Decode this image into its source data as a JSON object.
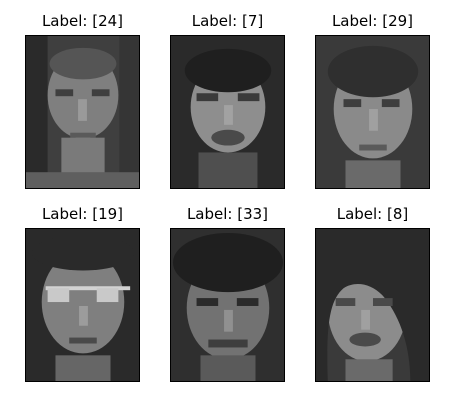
{
  "figure": {
    "panels": [
      {
        "title": "Label: [24]",
        "content": "grayscale face photo",
        "tone": "#7d7d7d",
        "hair": "#2c2c2c",
        "bg": "#3b3b3b"
      },
      {
        "title": "Label: [7]",
        "content": "grayscale face photo",
        "tone": "#8f8f8f",
        "hair": "#1f1f1f",
        "bg": "#2a2a2a"
      },
      {
        "title": "Label: [29]",
        "content": "grayscale face photo",
        "tone": "#8a8a8a",
        "hair": "#2f2f2f",
        "bg": "#3a3a3a"
      },
      {
        "title": "Label: [19]",
        "content": "grayscale face photo",
        "tone": "#808080",
        "hair": "#2a2a2a",
        "bg": "#2a2a2a"
      },
      {
        "title": "Label: [33]",
        "content": "grayscale face photo",
        "tone": "#747474",
        "hair": "#1f1f1f",
        "bg": "#2f2f2f"
      },
      {
        "title": "Label: [8]",
        "content": "grayscale face photo",
        "tone": "#8c8c8c",
        "hair": "#2a2a2a",
        "bg": "#3a3a3a"
      }
    ]
  }
}
